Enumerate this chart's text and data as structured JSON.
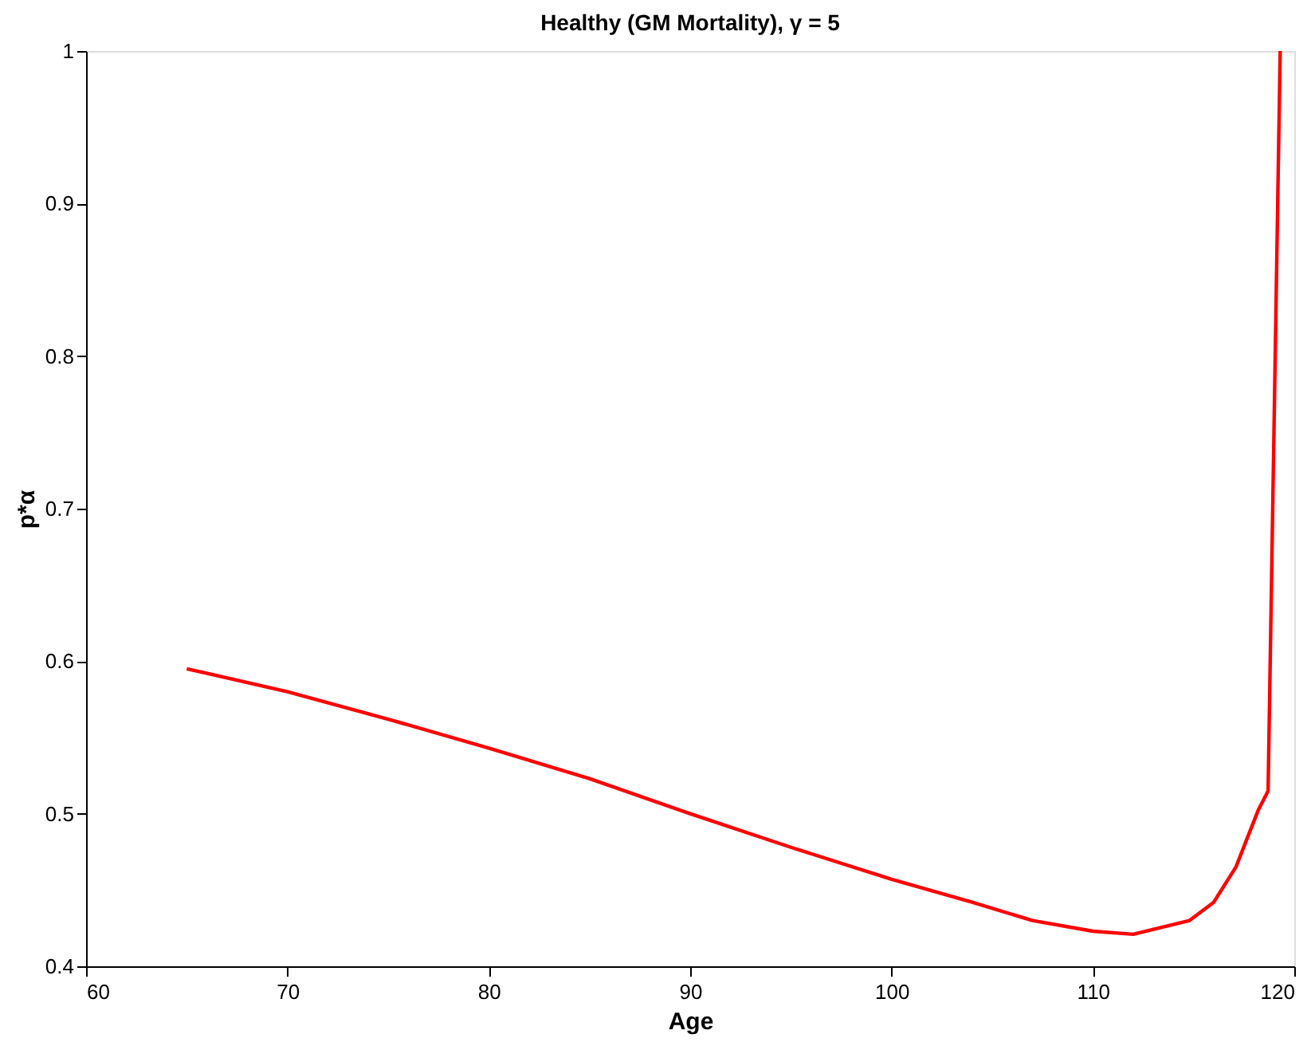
{
  "chart_data": {
    "type": "line",
    "title": "Healthy (GM Mortality), γ = 5",
    "xlabel": "Age",
    "ylabel": "p*α",
    "x": [
      65,
      70,
      75,
      80,
      85,
      90,
      95,
      100,
      104,
      107,
      110,
      112,
      114.8,
      116,
      117.1,
      118.2,
      118.7,
      119.3
    ],
    "series": [
      {
        "color": "#ff0000",
        "values": [
          0.595,
          0.58,
          0.562,
          0.543,
          0.523,
          0.5,
          0.478,
          0.457,
          0.442,
          0.43,
          0.423,
          0.421,
          0.43,
          0.442,
          0.465,
          0.502,
          0.515,
          1.0
        ]
      }
    ],
    "xlim": [
      60,
      120
    ],
    "ylim": [
      0.4,
      1
    ],
    "xticks": [
      60,
      70,
      80,
      90,
      100,
      110,
      120
    ],
    "yticks": [
      0.4,
      0.5,
      0.6,
      0.7,
      0.8,
      0.9,
      1
    ],
    "grid": false,
    "marker": "none",
    "line_style": "solid"
  }
}
